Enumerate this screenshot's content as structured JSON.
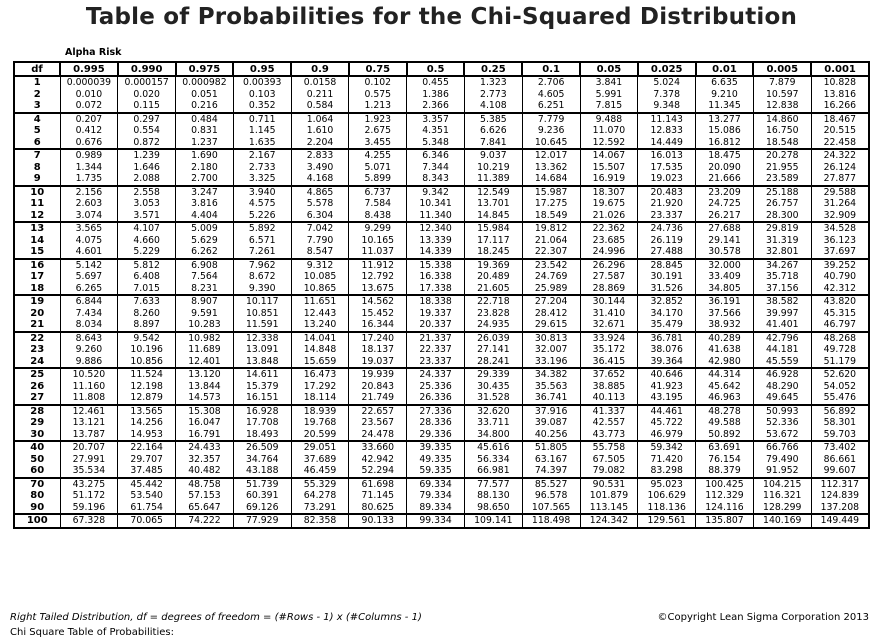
{
  "title": "Table of Probabilities for the Chi-Squared Distribution",
  "alpha_label": "Alpha Risk",
  "df_header": "df",
  "alphas": [
    "0.995",
    "0.990",
    "0.975",
    "0.95",
    "0.9",
    "0.75",
    "0.5",
    "0.25",
    "0.1",
    "0.05",
    "0.025",
    "0.01",
    "0.005",
    "0.001"
  ],
  "groups": [
    [
      [
        "1",
        "0.000039",
        "0.000157",
        "0.000982",
        "0.00393",
        "0.0158",
        "0.102",
        "0.455",
        "1.323",
        "2.706",
        "3.841",
        "5.024",
        "6.635",
        "7.879",
        "10.828"
      ],
      [
        "2",
        "0.010",
        "0.020",
        "0.051",
        "0.103",
        "0.211",
        "0.575",
        "1.386",
        "2.773",
        "4.605",
        "5.991",
        "7.378",
        "9.210",
        "10.597",
        "13.816"
      ],
      [
        "3",
        "0.072",
        "0.115",
        "0.216",
        "0.352",
        "0.584",
        "1.213",
        "2.366",
        "4.108",
        "6.251",
        "7.815",
        "9.348",
        "11.345",
        "12.838",
        "16.266"
      ]
    ],
    [
      [
        "4",
        "0.207",
        "0.297",
        "0.484",
        "0.711",
        "1.064",
        "1.923",
        "3.357",
        "5.385",
        "7.779",
        "9.488",
        "11.143",
        "13.277",
        "14.860",
        "18.467"
      ],
      [
        "5",
        "0.412",
        "0.554",
        "0.831",
        "1.145",
        "1.610",
        "2.675",
        "4.351",
        "6.626",
        "9.236",
        "11.070",
        "12.833",
        "15.086",
        "16.750",
        "20.515"
      ],
      [
        "6",
        "0.676",
        "0.872",
        "1.237",
        "1.635",
        "2.204",
        "3.455",
        "5.348",
        "7.841",
        "10.645",
        "12.592",
        "14.449",
        "16.812",
        "18.548",
        "22.458"
      ]
    ],
    [
      [
        "7",
        "0.989",
        "1.239",
        "1.690",
        "2.167",
        "2.833",
        "4.255",
        "6.346",
        "9.037",
        "12.017",
        "14.067",
        "16.013",
        "18.475",
        "20.278",
        "24.322"
      ],
      [
        "8",
        "1.344",
        "1.646",
        "2.180",
        "2.733",
        "3.490",
        "5.071",
        "7.344",
        "10.219",
        "13.362",
        "15.507",
        "17.535",
        "20.090",
        "21.955",
        "26.124"
      ],
      [
        "9",
        "1.735",
        "2.088",
        "2.700",
        "3.325",
        "4.168",
        "5.899",
        "8.343",
        "11.389",
        "14.684",
        "16.919",
        "19.023",
        "21.666",
        "23.589",
        "27.877"
      ]
    ],
    [
      [
        "10",
        "2.156",
        "2.558",
        "3.247",
        "3.940",
        "4.865",
        "6.737",
        "9.342",
        "12.549",
        "15.987",
        "18.307",
        "20.483",
        "23.209",
        "25.188",
        "29.588"
      ],
      [
        "11",
        "2.603",
        "3.053",
        "3.816",
        "4.575",
        "5.578",
        "7.584",
        "10.341",
        "13.701",
        "17.275",
        "19.675",
        "21.920",
        "24.725",
        "26.757",
        "31.264"
      ],
      [
        "12",
        "3.074",
        "3.571",
        "4.404",
        "5.226",
        "6.304",
        "8.438",
        "11.340",
        "14.845",
        "18.549",
        "21.026",
        "23.337",
        "26.217",
        "28.300",
        "32.909"
      ]
    ],
    [
      [
        "13",
        "3.565",
        "4.107",
        "5.009",
        "5.892",
        "7.042",
        "9.299",
        "12.340",
        "15.984",
        "19.812",
        "22.362",
        "24.736",
        "27.688",
        "29.819",
        "34.528"
      ],
      [
        "14",
        "4.075",
        "4.660",
        "5.629",
        "6.571",
        "7.790",
        "10.165",
        "13.339",
        "17.117",
        "21.064",
        "23.685",
        "26.119",
        "29.141",
        "31.319",
        "36.123"
      ],
      [
        "15",
        "4.601",
        "5.229",
        "6.262",
        "7.261",
        "8.547",
        "11.037",
        "14.339",
        "18.245",
        "22.307",
        "24.996",
        "27.488",
        "30.578",
        "32.801",
        "37.697"
      ]
    ],
    [
      [
        "16",
        "5.142",
        "5.812",
        "6.908",
        "7.962",
        "9.312",
        "11.912",
        "15.338",
        "19.369",
        "23.542",
        "26.296",
        "28.845",
        "32.000",
        "34.267",
        "39.252"
      ],
      [
        "17",
        "5.697",
        "6.408",
        "7.564",
        "8.672",
        "10.085",
        "12.792",
        "16.338",
        "20.489",
        "24.769",
        "27.587",
        "30.191",
        "33.409",
        "35.718",
        "40.790"
      ],
      [
        "18",
        "6.265",
        "7.015",
        "8.231",
        "9.390",
        "10.865",
        "13.675",
        "17.338",
        "21.605",
        "25.989",
        "28.869",
        "31.526",
        "34.805",
        "37.156",
        "42.312"
      ]
    ],
    [
      [
        "19",
        "6.844",
        "7.633",
        "8.907",
        "10.117",
        "11.651",
        "14.562",
        "18.338",
        "22.718",
        "27.204",
        "30.144",
        "32.852",
        "36.191",
        "38.582",
        "43.820"
      ],
      [
        "20",
        "7.434",
        "8.260",
        "9.591",
        "10.851",
        "12.443",
        "15.452",
        "19.337",
        "23.828",
        "28.412",
        "31.410",
        "34.170",
        "37.566",
        "39.997",
        "45.315"
      ],
      [
        "21",
        "8.034",
        "8.897",
        "10.283",
        "11.591",
        "13.240",
        "16.344",
        "20.337",
        "24.935",
        "29.615",
        "32.671",
        "35.479",
        "38.932",
        "41.401",
        "46.797"
      ]
    ],
    [
      [
        "22",
        "8.643",
        "9.542",
        "10.982",
        "12.338",
        "14.041",
        "17.240",
        "21.337",
        "26.039",
        "30.813",
        "33.924",
        "36.781",
        "40.289",
        "42.796",
        "48.268"
      ],
      [
        "23",
        "9.260",
        "10.196",
        "11.689",
        "13.091",
        "14.848",
        "18.137",
        "22.337",
        "27.141",
        "32.007",
        "35.172",
        "38.076",
        "41.638",
        "44.181",
        "49.728"
      ],
      [
        "24",
        "9.886",
        "10.856",
        "12.401",
        "13.848",
        "15.659",
        "19.037",
        "23.337",
        "28.241",
        "33.196",
        "36.415",
        "39.364",
        "42.980",
        "45.559",
        "51.179"
      ]
    ],
    [
      [
        "25",
        "10.520",
        "11.524",
        "13.120",
        "14.611",
        "16.473",
        "19.939",
        "24.337",
        "29.339",
        "34.382",
        "37.652",
        "40.646",
        "44.314",
        "46.928",
        "52.620"
      ],
      [
        "26",
        "11.160",
        "12.198",
        "13.844",
        "15.379",
        "17.292",
        "20.843",
        "25.336",
        "30.435",
        "35.563",
        "38.885",
        "41.923",
        "45.642",
        "48.290",
        "54.052"
      ],
      [
        "27",
        "11.808",
        "12.879",
        "14.573",
        "16.151",
        "18.114",
        "21.749",
        "26.336",
        "31.528",
        "36.741",
        "40.113",
        "43.195",
        "46.963",
        "49.645",
        "55.476"
      ]
    ],
    [
      [
        "28",
        "12.461",
        "13.565",
        "15.308",
        "16.928",
        "18.939",
        "22.657",
        "27.336",
        "32.620",
        "37.916",
        "41.337",
        "44.461",
        "48.278",
        "50.993",
        "56.892"
      ],
      [
        "29",
        "13.121",
        "14.256",
        "16.047",
        "17.708",
        "19.768",
        "23.567",
        "28.336",
        "33.711",
        "39.087",
        "42.557",
        "45.722",
        "49.588",
        "52.336",
        "58.301"
      ],
      [
        "30",
        "13.787",
        "14.953",
        "16.791",
        "18.493",
        "20.599",
        "24.478",
        "29.336",
        "34.800",
        "40.256",
        "43.773",
        "46.979",
        "50.892",
        "53.672",
        "59.703"
      ]
    ],
    [
      [
        "40",
        "20.707",
        "22.164",
        "24.433",
        "26.509",
        "29.051",
        "33.660",
        "39.335",
        "45.616",
        "51.805",
        "55.758",
        "59.342",
        "63.691",
        "66.766",
        "73.402"
      ],
      [
        "50",
        "27.991",
        "29.707",
        "32.357",
        "34.764",
        "37.689",
        "42.942",
        "49.335",
        "56.334",
        "63.167",
        "67.505",
        "71.420",
        "76.154",
        "79.490",
        "86.661"
      ],
      [
        "60",
        "35.534",
        "37.485",
        "40.482",
        "43.188",
        "46.459",
        "52.294",
        "59.335",
        "66.981",
        "74.397",
        "79.082",
        "83.298",
        "88.379",
        "91.952",
        "99.607"
      ]
    ],
    [
      [
        "70",
        "43.275",
        "45.442",
        "48.758",
        "51.739",
        "55.329",
        "61.698",
        "69.334",
        "77.577",
        "85.527",
        "90.531",
        "95.023",
        "100.425",
        "104.215",
        "112.317"
      ],
      [
        "80",
        "51.172",
        "53.540",
        "57.153",
        "60.391",
        "64.278",
        "71.145",
        "79.334",
        "88.130",
        "96.578",
        "101.879",
        "106.629",
        "112.329",
        "116.321",
        "124.839"
      ],
      [
        "90",
        "59.196",
        "61.754",
        "65.647",
        "69.126",
        "73.291",
        "80.625",
        "89.334",
        "98.650",
        "107.565",
        "113.145",
        "118.136",
        "124.116",
        "128.299",
        "137.208"
      ]
    ],
    [
      [
        "100",
        "67.328",
        "70.065",
        "74.222",
        "77.929",
        "82.358",
        "90.133",
        "99.334",
        "109.141",
        "118.498",
        "124.342",
        "129.561",
        "135.807",
        "140.169",
        "149.449"
      ]
    ]
  ],
  "footer": {
    "left": "Right Tailed Distribution, df = degrees of freedom = (#Rows - 1) x (#Columns - 1)",
    "right": "©Copyright Lean Sigma Corporation 2013",
    "bottom": "Chi Square Table of Probabilities:"
  }
}
